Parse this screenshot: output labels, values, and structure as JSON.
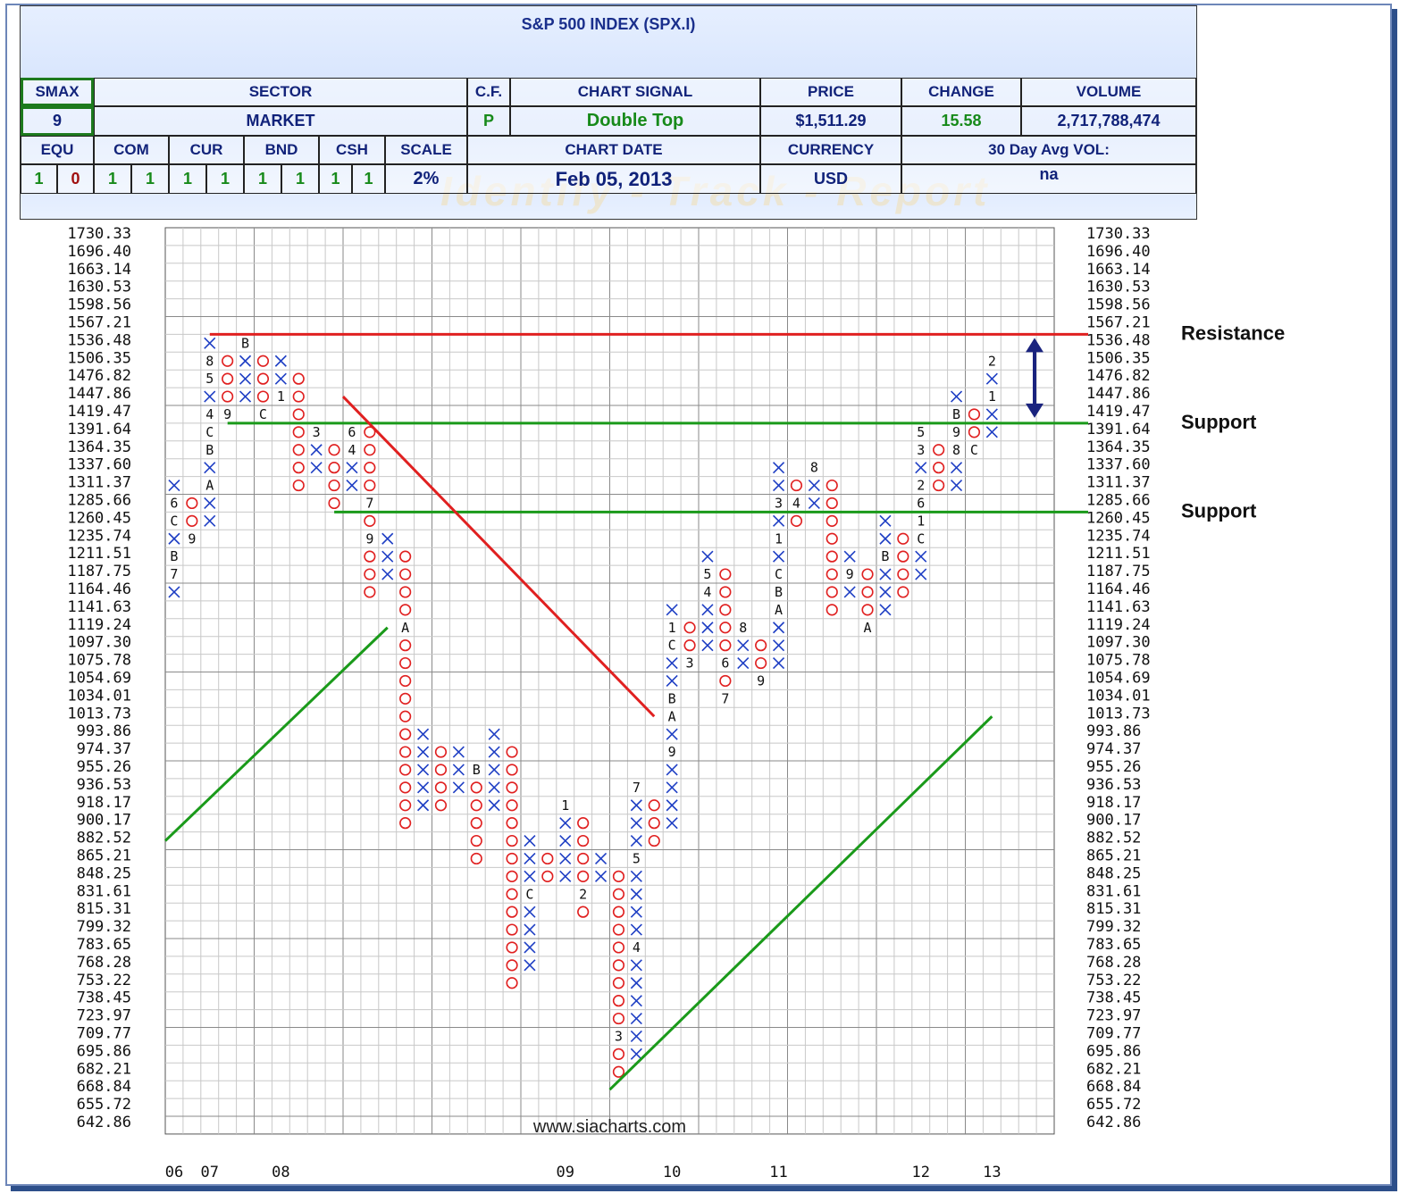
{
  "title": "S&P 500 INDEX (SPX.I)",
  "watermark": "Identify - Track - Report",
  "header": {
    "smax_label": "SMAX",
    "smax_value": "9",
    "sector_label": "SECTOR",
    "sector_value": "MARKET",
    "cf_label": "C.F.",
    "cf_value": "P",
    "signal_label": "CHART SIGNAL",
    "signal_value": "Double Top",
    "price_label": "PRICE",
    "price_value": "$1,511.29",
    "change_label": "CHANGE",
    "change_value": "15.58",
    "volume_label": "VOLUME",
    "volume_value": "2,717,788,474",
    "equ_label": "EQU",
    "com_label": "COM",
    "cur_label": "CUR",
    "bnd_label": "BND",
    "csh_label": "CSH",
    "scale_label": "SCALE",
    "scale_value": "2%",
    "equ_values": [
      "1",
      "0"
    ],
    "com_values": [
      "1",
      "1"
    ],
    "cur_values": [
      "1",
      "1"
    ],
    "bnd_values": [
      "1",
      "1"
    ],
    "csh_values": [
      "1",
      "1"
    ],
    "chart_date_label": "CHART DATE",
    "chart_date_value": "Feb 05, 2013",
    "currency_label": "CURRENCY",
    "currency_value": "USD",
    "avgvol_label": "30 Day Avg VOL:",
    "avgvol_value": "na"
  },
  "colors": {
    "x": "#1f3fc4",
    "o": "#e02020",
    "resistance": "#e02020",
    "support": "#1a9a1a",
    "arrow": "#1a237e"
  },
  "chart_data": {
    "type": "point_and_figure",
    "title": "S&P 500 INDEX (SPX.I)",
    "box_scale": "2%",
    "price_levels": [
      "1730.33",
      "1696.40",
      "1663.14",
      "1630.53",
      "1598.56",
      "1567.21",
      "1536.48",
      "1506.35",
      "1476.82",
      "1447.86",
      "1419.47",
      "1391.64",
      "1364.35",
      "1337.60",
      "1311.37",
      "1285.66",
      "1260.45",
      "1235.74",
      "1211.51",
      "1187.75",
      "1164.46",
      "1141.63",
      "1119.24",
      "1097.30",
      "1075.78",
      "1054.69",
      "1034.01",
      "1013.73",
      "993.86",
      "974.37",
      "955.26",
      "936.53",
      "918.17",
      "900.17",
      "882.52",
      "865.21",
      "848.25",
      "831.61",
      "815.31",
      "799.32",
      "783.65",
      "768.28",
      "753.22",
      "738.45",
      "723.97",
      "709.77",
      "695.86",
      "682.21",
      "668.84",
      "655.72",
      "642.86"
    ],
    "year_labels": [
      {
        "label": "06",
        "column": 0
      },
      {
        "label": "07",
        "column": 2
      },
      {
        "label": "08",
        "column": 6
      },
      {
        "label": "09",
        "column": 22
      },
      {
        "label": "10",
        "column": 28
      },
      {
        "label": "11",
        "column": 34
      },
      {
        "label": "12",
        "column": 42
      },
      {
        "label": "13",
        "column": 46
      }
    ],
    "columns": [
      {
        "type": "X",
        "from": "1164.46",
        "to": "1311.37",
        "marks": {
          "1285.66": "6",
          "1260.45": "C",
          "1211.51": "B",
          "1187.75": "7"
        }
      },
      {
        "type": "O",
        "from": "1285.66",
        "to": "1235.74",
        "marks": {
          "1235.74": "9"
        }
      },
      {
        "type": "X",
        "from": "1260.45",
        "to": "1536.48",
        "marks": {
          "1419.47": "4",
          "1476.82": "5",
          "1506.35": "8",
          "1391.64": "C",
          "1364.35": "B",
          "1311.37": "A"
        }
      },
      {
        "type": "O",
        "from": "1506.35",
        "to": "1419.47",
        "marks": {
          "1419.47": "9"
        }
      },
      {
        "type": "X",
        "from": "1447.86",
        "to": "1536.48",
        "marks": {
          "1536.48": "B"
        }
      },
      {
        "type": "O",
        "from": "1506.35",
        "to": "1419.47",
        "marks": {
          "1419.47": "C"
        }
      },
      {
        "type": "X",
        "from": "1447.86",
        "to": "1506.35",
        "marks": {
          "1447.86": "1"
        }
      },
      {
        "type": "O",
        "from": "1476.82",
        "to": "1311.37",
        "marks": {}
      },
      {
        "type": "X",
        "from": "1337.60",
        "to": "1364.35",
        "marks": {
          "1391.64": "3"
        }
      },
      {
        "type": "O",
        "from": "1364.35",
        "to": "1285.66",
        "marks": {}
      },
      {
        "type": "X",
        "from": "1311.37",
        "to": "1391.64",
        "marks": {
          "1391.64": "6",
          "1364.35": "4"
        }
      },
      {
        "type": "O",
        "from": "1391.64",
        "to": "1164.46",
        "marks": {
          "1285.66": "7",
          "1235.74": "9"
        }
      },
      {
        "type": "X",
        "from": "1187.75",
        "to": "1235.74",
        "marks": {}
      },
      {
        "type": "O",
        "from": "1211.51",
        "to": "900.17",
        "marks": {
          "1119.24": "A"
        }
      },
      {
        "type": "X",
        "from": "918.17",
        "to": "993.86",
        "marks": {}
      },
      {
        "type": "O",
        "from": "974.37",
        "to": "918.17",
        "marks": {}
      },
      {
        "type": "X",
        "from": "936.53",
        "to": "974.37",
        "marks": {}
      },
      {
        "type": "O",
        "from": "955.26",
        "to": "865.21",
        "marks": {
          "955.26": "B"
        }
      },
      {
        "type": "X",
        "from": "918.17",
        "to": "993.86",
        "marks": {}
      },
      {
        "type": "O",
        "from": "974.37",
        "to": "753.22",
        "marks": {}
      },
      {
        "type": "X",
        "from": "768.28",
        "to": "882.52",
        "marks": {
          "831.61": "C"
        }
      },
      {
        "type": "O",
        "from": "865.21",
        "to": "848.25",
        "marks": {}
      },
      {
        "type": "X",
        "from": "848.25",
        "to": "918.17",
        "marks": {
          "918.17": "1"
        }
      },
      {
        "type": "O",
        "from": "900.17",
        "to": "815.31",
        "marks": {
          "831.61": "2"
        }
      },
      {
        "type": "X",
        "from": "848.25",
        "to": "865.21",
        "marks": {}
      },
      {
        "type": "O",
        "from": "848.25",
        "to": "682.21",
        "marks": {
          "709.77": "3"
        }
      },
      {
        "type": "X",
        "from": "695.86",
        "to": "936.53",
        "marks": {
          "783.65": "4",
          "865.21": "5",
          "936.53": "7"
        }
      },
      {
        "type": "O",
        "from": "918.17",
        "to": "882.52",
        "marks": {}
      },
      {
        "type": "X",
        "from": "900.17",
        "to": "1141.63",
        "marks": {
          "974.37": "9",
          "1013.73": "A",
          "1034.01": "B",
          "1097.30": "C",
          "1119.24": "1"
        }
      },
      {
        "type": "O",
        "from": "1119.24",
        "to": "1075.78",
        "marks": {
          "1075.78": "3"
        }
      },
      {
        "type": "X",
        "from": "1097.30",
        "to": "1211.51",
        "marks": {
          "1164.46": "4",
          "1187.75": "5"
        }
      },
      {
        "type": "O",
        "from": "1187.75",
        "to": "1034.01",
        "marks": {
          "1075.78": "6",
          "1034.01": "7"
        }
      },
      {
        "type": "X",
        "from": "1075.78",
        "to": "1119.24",
        "marks": {
          "1119.24": "8"
        }
      },
      {
        "type": "O",
        "from": "1097.30",
        "to": "1054.69",
        "marks": {
          "1054.69": "9"
        }
      },
      {
        "type": "X",
        "from": "1075.78",
        "to": "1337.60",
        "marks": {
          "1141.63": "A",
          "1164.46": "B",
          "1187.75": "C",
          "1235.74": "1",
          "1285.66": "3"
        }
      },
      {
        "type": "O",
        "from": "1311.37",
        "to": "1260.45",
        "marks": {
          "1285.66": "4"
        }
      },
      {
        "type": "X",
        "from": "1285.66",
        "to": "1337.60",
        "marks": {
          "1337.60": "8"
        }
      },
      {
        "type": "O",
        "from": "1311.37",
        "to": "1141.63",
        "marks": {}
      },
      {
        "type": "X",
        "from": "1164.46",
        "to": "1211.51",
        "marks": {
          "1187.75": "9"
        }
      },
      {
        "type": "O",
        "from": "1187.75",
        "to": "1141.63",
        "marks": {
          "1119.24": "A"
        }
      },
      {
        "type": "X",
        "from": "1141.63",
        "to": "1260.45",
        "marks": {
          "1211.51": "B"
        }
      },
      {
        "type": "O",
        "from": "1235.74",
        "to": "1164.46",
        "marks": {}
      },
      {
        "type": "X",
        "from": "1187.75",
        "to": "1391.64",
        "marks": {
          "1260.45": "1",
          "1235.74": "C",
          "1311.37": "2",
          "1364.35": "3",
          "1391.64": "5",
          "1285.66": "6"
        }
      },
      {
        "type": "O",
        "from": "1364.35",
        "to": "1311.37",
        "marks": {}
      },
      {
        "type": "X",
        "from": "1311.37",
        "to": "1447.86",
        "marks": {
          "1391.64": "9",
          "1364.35": "8",
          "1419.47": "B"
        }
      },
      {
        "type": "O",
        "from": "1419.47",
        "to": "1364.35",
        "marks": {
          "1364.35": "C"
        }
      },
      {
        "type": "X",
        "from": "1391.64",
        "to": "1506.35",
        "marks": {
          "1447.86": "1",
          "1506.35": "2"
        }
      }
    ],
    "trendlines": [
      {
        "type": "support",
        "from": {
          "column": 0,
          "price": "882.52"
        },
        "to": {
          "column": 12.5,
          "price": "1119.24"
        }
      },
      {
        "type": "resistance",
        "from": {
          "column": 10,
          "price": "1447.86"
        },
        "to": {
          "column": 27.5,
          "price": "1013.73"
        }
      },
      {
        "type": "support",
        "from": {
          "column": 25,
          "price": "668.84"
        },
        "to": {
          "column": 46.5,
          "price": "1013.73"
        }
      }
    ],
    "horizontal_lines": [
      {
        "type": "resistance",
        "price": "1567.21",
        "label": "Resistance",
        "from_column": 2
      },
      {
        "type": "support",
        "price": "1419.47",
        "label": "Support",
        "from_column": 3
      },
      {
        "type": "support",
        "price": "1285.66",
        "label": "Support",
        "from_column": 9
      }
    ],
    "website": "www.siacharts.com"
  }
}
